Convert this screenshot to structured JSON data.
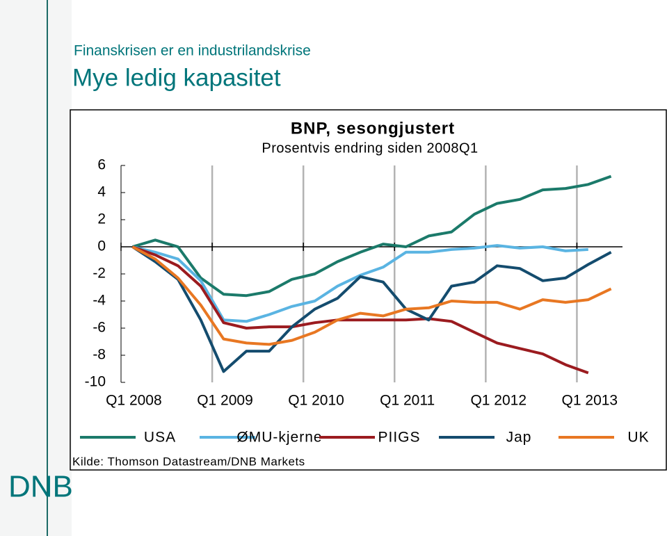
{
  "slide": {
    "kicker": "Finanskrisen er en industrilandskrise",
    "title": "Mye ledig kapasitet",
    "logo": "DNB"
  },
  "chart_data": {
    "type": "line",
    "title": "BNP, sesongjustert",
    "subtitle": "Prosentvis endring siden 2008Q1",
    "source": "Kilde: Thomson Datastream/DNB Markets",
    "categories": [
      "Q1 2008",
      null,
      null,
      null,
      "Q1 2009",
      null,
      null,
      null,
      "Q1 2010",
      null,
      null,
      null,
      "Q1 2011",
      null,
      null,
      null,
      "Q1 2012",
      null,
      null,
      null,
      "Q1 2013",
      null
    ],
    "series": [
      {
        "name": "USA",
        "color": "#1b7a6a",
        "values": [
          0,
          0.5,
          0,
          -2.3,
          -3.5,
          -3.6,
          -3.3,
          -2.4,
          -2.0,
          -1.1,
          -0.4,
          0.2,
          0.0,
          0.8,
          1.1,
          2.4,
          3.2,
          3.5,
          4.2,
          4.3,
          4.6,
          5.2
        ]
      },
      {
        "name": "ØMU-kjerne",
        "color": "#5ab4e2",
        "values": [
          0,
          -0.4,
          -0.9,
          -2.5,
          -5.4,
          -5.5,
          -5.0,
          -4.4,
          -4.0,
          -2.9,
          -2.1,
          -1.5,
          -0.4,
          -0.4,
          -0.2,
          -0.1,
          0.1,
          -0.1,
          0.0,
          -0.3,
          -0.2,
          null
        ]
      },
      {
        "name": "PIIGS",
        "color": "#9b1b1f",
        "values": [
          0,
          -0.6,
          -1.4,
          -2.9,
          -5.6,
          -6.0,
          -5.9,
          -5.9,
          -5.6,
          -5.4,
          -5.4,
          -5.4,
          -5.4,
          -5.3,
          -5.5,
          -6.3,
          -7.1,
          -7.5,
          -7.9,
          -8.7,
          -9.3,
          null
        ]
      },
      {
        "name": "Jap",
        "color": "#144c6e",
        "values": [
          0,
          -1.1,
          -2.4,
          -5.4,
          -9.2,
          -7.7,
          -7.7,
          -5.9,
          -4.6,
          -3.8,
          -2.2,
          -2.6,
          -4.6,
          -5.4,
          -2.9,
          -2.6,
          -1.4,
          -1.6,
          -2.5,
          -2.3,
          -1.3,
          -0.4
        ]
      },
      {
        "name": "UK",
        "color": "#e87722",
        "values": [
          0,
          -0.9,
          -2.3,
          -4.3,
          -6.8,
          -7.1,
          -7.2,
          -6.9,
          -6.3,
          -5.4,
          -4.9,
          -5.1,
          -4.6,
          -4.5,
          -4.0,
          -4.1,
          -4.1,
          -4.6,
          -3.9,
          -4.1,
          -3.9,
          -3.1
        ]
      }
    ],
    "ylim": [
      -10,
      6
    ],
    "yticks": [
      -10,
      -8,
      -6,
      -4,
      -2,
      0,
      2,
      4,
      6
    ]
  }
}
